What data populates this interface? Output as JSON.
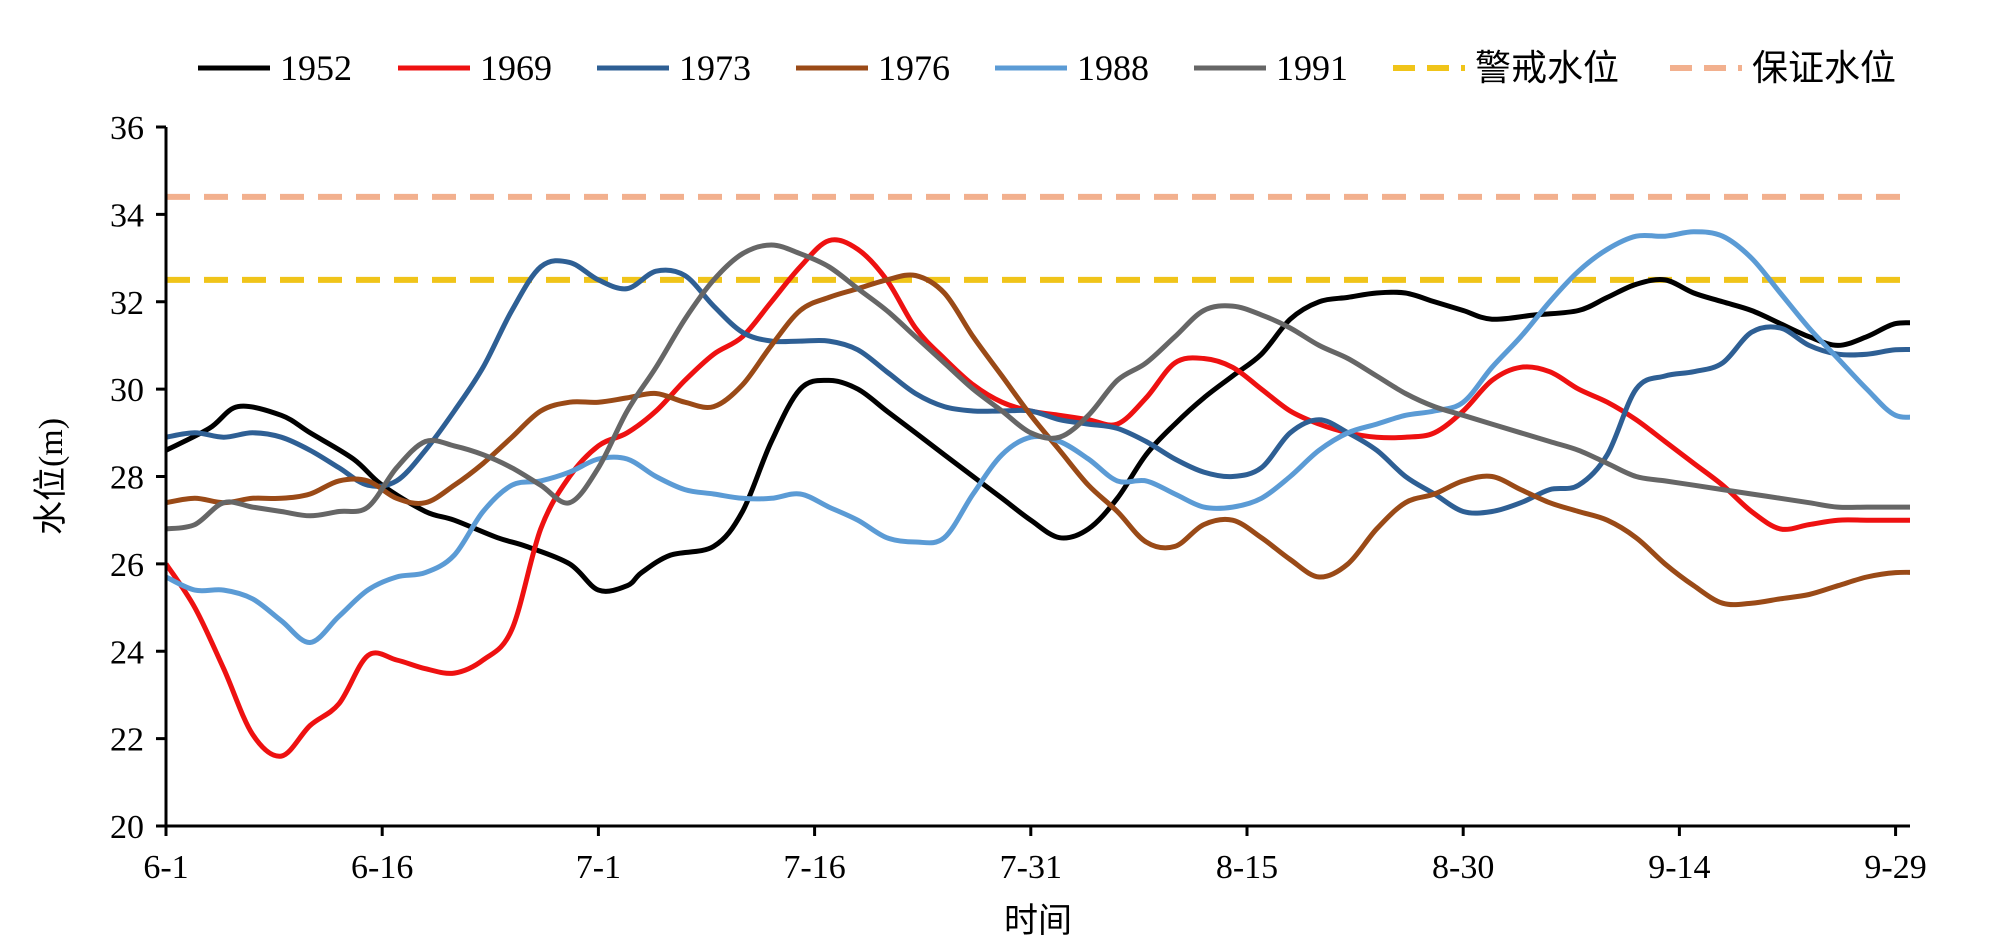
{
  "chart_data": {
    "type": "line",
    "title": "",
    "xlabel": "时间",
    "ylabel": "水位(m)",
    "ylim": [
      20,
      36
    ],
    "yticks": [
      20,
      22,
      24,
      26,
      28,
      30,
      32,
      34,
      36
    ],
    "xlim": [
      0,
      121
    ],
    "xticks": [
      {
        "day": 0,
        "label": "6-1"
      },
      {
        "day": 15,
        "label": "6-16"
      },
      {
        "day": 30,
        "label": "7-1"
      },
      {
        "day": 45,
        "label": "7-16"
      },
      {
        "day": 60,
        "label": "7-31"
      },
      {
        "day": 75,
        "label": "8-15"
      },
      {
        "day": 90,
        "label": "8-30"
      },
      {
        "day": 105,
        "label": "9-14"
      },
      {
        "day": 120,
        "label": "9-29"
      }
    ],
    "legend_position": "top",
    "series": [
      {
        "name": "1952",
        "color": "#000000",
        "style": "solid",
        "x": [
          0,
          3,
          5,
          8,
          10,
          13,
          15,
          18,
          20,
          23,
          25,
          28,
          30,
          32,
          33,
          35,
          38,
          40,
          42,
          44,
          46,
          48,
          50,
          52,
          54,
          56,
          58,
          60,
          62,
          64,
          66,
          68,
          70,
          72,
          74,
          76,
          78,
          80,
          82,
          84,
          86,
          88,
          90,
          92,
          95,
          98,
          100,
          102,
          104,
          106,
          108,
          110,
          112,
          114,
          116,
          118,
          120,
          122
        ],
        "y": [
          28.6,
          29.1,
          29.6,
          29.4,
          29.0,
          28.4,
          27.8,
          27.2,
          27.0,
          26.6,
          26.4,
          26.0,
          25.4,
          25.5,
          25.8,
          26.2,
          26.4,
          27.2,
          28.8,
          30.0,
          30.2,
          30.0,
          29.5,
          29.0,
          28.5,
          28.0,
          27.5,
          27.0,
          26.6,
          26.8,
          27.5,
          28.5,
          29.2,
          29.8,
          30.3,
          30.8,
          31.6,
          32.0,
          32.1,
          32.2,
          32.2,
          32.0,
          31.8,
          31.6,
          31.7,
          31.8,
          32.1,
          32.4,
          32.5,
          32.2,
          32.0,
          31.8,
          31.5,
          31.2,
          31.0,
          31.2,
          31.5,
          31.5
        ]
      },
      {
        "name": "1969",
        "color": "#ee1111",
        "style": "solid",
        "x": [
          0,
          2,
          4,
          6,
          8,
          10,
          12,
          14,
          16,
          18,
          20,
          22,
          24,
          26,
          28,
          30,
          32,
          34,
          36,
          38,
          40,
          42,
          44,
          46,
          48,
          50,
          52,
          54,
          56,
          58,
          60,
          62,
          64,
          66,
          68,
          70,
          72,
          74,
          76,
          78,
          80,
          82,
          84,
          86,
          88,
          90,
          92,
          94,
          96,
          98,
          100,
          102,
          104,
          106,
          108,
          110,
          112,
          114,
          116,
          118,
          120,
          122
        ],
        "y": [
          26.0,
          25.0,
          23.6,
          22.1,
          21.6,
          22.3,
          22.8,
          23.9,
          23.8,
          23.6,
          23.5,
          23.8,
          24.5,
          26.8,
          28.0,
          28.7,
          29.0,
          29.5,
          30.2,
          30.8,
          31.2,
          32.0,
          32.8,
          33.4,
          33.2,
          32.5,
          31.4,
          30.7,
          30.1,
          29.7,
          29.5,
          29.4,
          29.3,
          29.2,
          29.8,
          30.6,
          30.7,
          30.5,
          30.0,
          29.5,
          29.2,
          29.0,
          28.9,
          28.9,
          29.0,
          29.5,
          30.2,
          30.5,
          30.4,
          30.0,
          29.7,
          29.3,
          28.8,
          28.3,
          27.8,
          27.2,
          26.8,
          26.9,
          27.0,
          27.0,
          27.0,
          27.0
        ]
      },
      {
        "name": "1973",
        "color": "#2e5f94",
        "style": "solid",
        "x": [
          0,
          2,
          4,
          6,
          8,
          10,
          12,
          14,
          16,
          18,
          20,
          22,
          24,
          26,
          28,
          30,
          32,
          34,
          36,
          38,
          40,
          42,
          44,
          46,
          48,
          50,
          52,
          54,
          56,
          58,
          60,
          62,
          64,
          66,
          68,
          70,
          72,
          74,
          76,
          78,
          80,
          82,
          84,
          86,
          88,
          90,
          92,
          94,
          96,
          98,
          100,
          102,
          104,
          106,
          108,
          110,
          112,
          114,
          116,
          118,
          120,
          122
        ],
        "y": [
          28.9,
          29.0,
          28.9,
          29.0,
          28.9,
          28.6,
          28.2,
          27.8,
          27.9,
          28.6,
          29.5,
          30.5,
          31.8,
          32.8,
          32.9,
          32.5,
          32.3,
          32.7,
          32.6,
          31.9,
          31.3,
          31.1,
          31.1,
          31.1,
          30.9,
          30.4,
          29.9,
          29.6,
          29.5,
          29.5,
          29.5,
          29.3,
          29.2,
          29.1,
          28.8,
          28.4,
          28.1,
          28.0,
          28.2,
          29.0,
          29.3,
          29.0,
          28.6,
          28.0,
          27.6,
          27.2,
          27.2,
          27.4,
          27.7,
          27.8,
          28.5,
          30.0,
          30.3,
          30.4,
          30.6,
          31.3,
          31.4,
          31.0,
          30.8,
          30.8,
          30.9,
          30.9
        ]
      },
      {
        "name": "1976",
        "color": "#9a4a17",
        "style": "solid",
        "x": [
          0,
          2,
          4,
          6,
          8,
          10,
          12,
          14,
          16,
          18,
          20,
          22,
          24,
          26,
          28,
          30,
          32,
          34,
          36,
          38,
          40,
          42,
          44,
          46,
          48,
          50,
          52,
          54,
          56,
          58,
          60,
          62,
          64,
          66,
          68,
          70,
          72,
          74,
          76,
          78,
          80,
          82,
          84,
          86,
          88,
          90,
          92,
          94,
          96,
          98,
          100,
          102,
          104,
          106,
          108,
          110,
          112,
          114,
          116,
          118,
          120,
          122
        ],
        "y": [
          27.4,
          27.5,
          27.4,
          27.5,
          27.5,
          27.6,
          27.9,
          27.9,
          27.5,
          27.4,
          27.8,
          28.3,
          28.9,
          29.5,
          29.7,
          29.7,
          29.8,
          29.9,
          29.7,
          29.6,
          30.1,
          31.0,
          31.8,
          32.1,
          32.3,
          32.5,
          32.6,
          32.2,
          31.2,
          30.3,
          29.4,
          28.6,
          27.8,
          27.2,
          26.5,
          26.4,
          26.9,
          27.0,
          26.6,
          26.1,
          25.7,
          26.0,
          26.8,
          27.4,
          27.6,
          27.9,
          28.0,
          27.7,
          27.4,
          27.2,
          27.0,
          26.6,
          26.0,
          25.5,
          25.1,
          25.1,
          25.2,
          25.3,
          25.5,
          25.7,
          25.8,
          25.8
        ]
      },
      {
        "name": "1988",
        "color": "#5b9bd5",
        "style": "solid",
        "x": [
          0,
          2,
          4,
          6,
          8,
          10,
          12,
          14,
          16,
          18,
          20,
          22,
          24,
          26,
          28,
          30,
          32,
          34,
          36,
          38,
          40,
          42,
          44,
          46,
          48,
          50,
          52,
          54,
          56,
          58,
          60,
          62,
          64,
          66,
          68,
          70,
          72,
          74,
          76,
          78,
          80,
          82,
          84,
          86,
          88,
          90,
          92,
          94,
          96,
          98,
          100,
          102,
          104,
          106,
          108,
          110,
          112,
          114,
          116,
          118,
          120,
          122
        ],
        "y": [
          25.7,
          25.4,
          25.4,
          25.2,
          24.7,
          24.2,
          24.8,
          25.4,
          25.7,
          25.8,
          26.2,
          27.2,
          27.8,
          27.9,
          28.1,
          28.4,
          28.4,
          28.0,
          27.7,
          27.6,
          27.5,
          27.5,
          27.6,
          27.3,
          27.0,
          26.6,
          26.5,
          26.6,
          27.6,
          28.5,
          28.9,
          28.8,
          28.4,
          27.9,
          27.9,
          27.6,
          27.3,
          27.3,
          27.5,
          28.0,
          28.6,
          29.0,
          29.2,
          29.4,
          29.5,
          29.7,
          30.5,
          31.2,
          32.0,
          32.7,
          33.2,
          33.5,
          33.5,
          33.6,
          33.5,
          33.0,
          32.2,
          31.4,
          30.7,
          30.0,
          29.4,
          29.4
        ]
      },
      {
        "name": "1991",
        "color": "#666666",
        "style": "solid",
        "x": [
          0,
          2,
          4,
          6,
          8,
          10,
          12,
          14,
          16,
          18,
          20,
          22,
          24,
          26,
          28,
          30,
          32,
          34,
          36,
          38,
          40,
          42,
          44,
          46,
          48,
          50,
          52,
          54,
          56,
          58,
          60,
          62,
          64,
          66,
          68,
          70,
          72,
          74,
          76,
          78,
          80,
          82,
          84,
          86,
          88,
          90,
          92,
          94,
          96,
          98,
          100,
          102,
          104,
          106,
          108,
          110,
          112,
          114,
          116,
          118,
          120,
          122
        ],
        "y": [
          26.8,
          26.9,
          27.4,
          27.3,
          27.2,
          27.1,
          27.2,
          27.3,
          28.2,
          28.8,
          28.7,
          28.5,
          28.2,
          27.8,
          27.4,
          28.2,
          29.5,
          30.5,
          31.6,
          32.5,
          33.1,
          33.3,
          33.1,
          32.8,
          32.3,
          31.8,
          31.2,
          30.6,
          30.0,
          29.5,
          29.0,
          28.9,
          29.4,
          30.2,
          30.6,
          31.2,
          31.8,
          31.9,
          31.7,
          31.4,
          31.0,
          30.7,
          30.3,
          29.9,
          29.6,
          29.4,
          29.2,
          29.0,
          28.8,
          28.6,
          28.3,
          28.0,
          27.9,
          27.8,
          27.7,
          27.6,
          27.5,
          27.4,
          27.3,
          27.3,
          27.3,
          27.3
        ]
      },
      {
        "name": "警戒水位",
        "color": "#f0c419",
        "style": "dashed",
        "x": [
          0,
          122
        ],
        "y": [
          32.5,
          32.5
        ]
      },
      {
        "name": "保证水位",
        "color": "#f2b08e",
        "style": "dashed",
        "x": [
          0,
          122
        ],
        "y": [
          34.4,
          34.4
        ]
      }
    ]
  }
}
